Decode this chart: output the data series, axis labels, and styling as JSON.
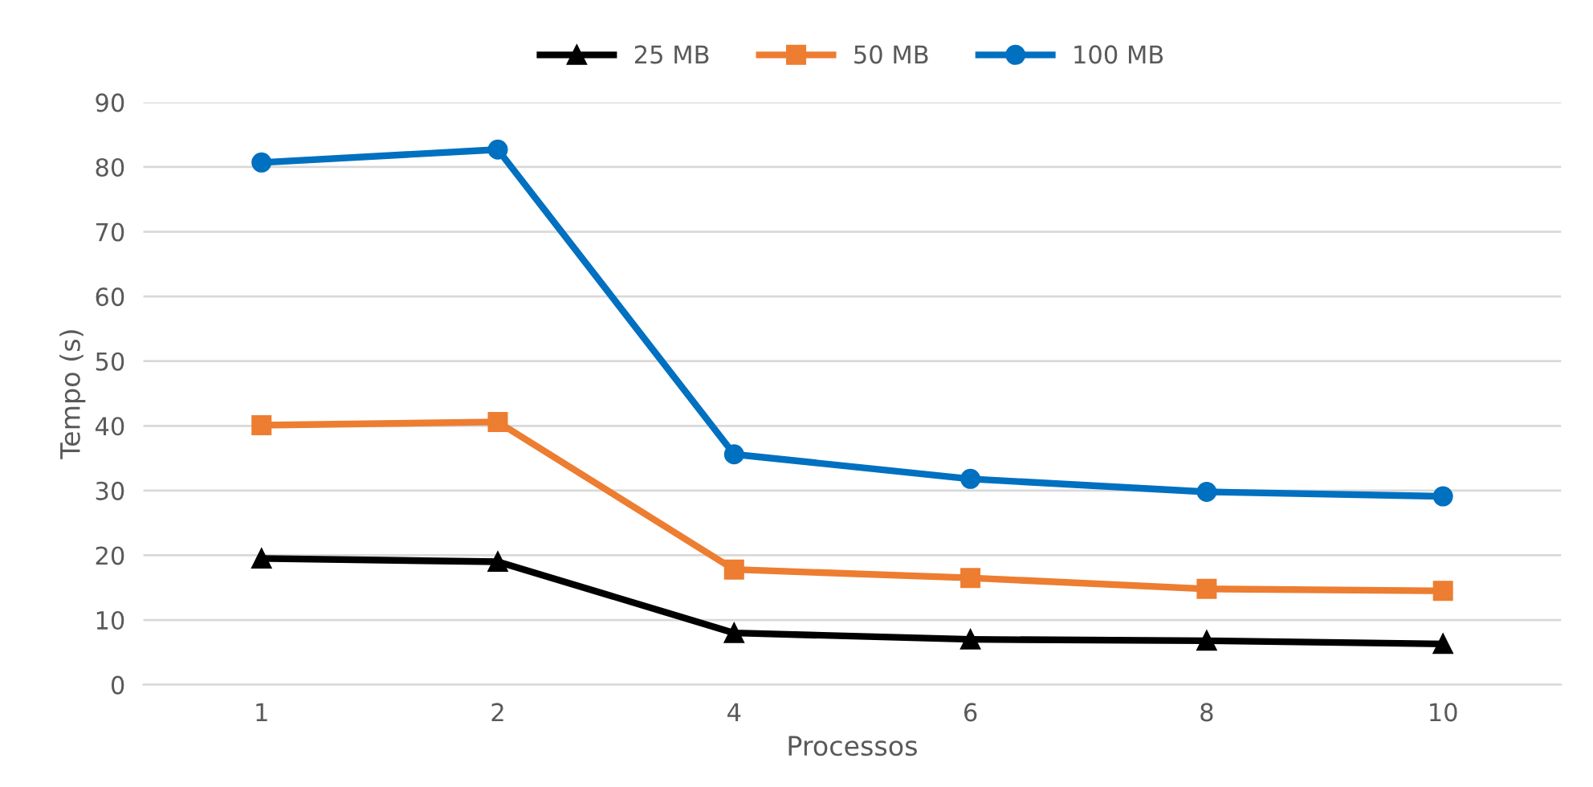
{
  "chart_data": {
    "type": "line",
    "xlabel": "Processos",
    "ylabel": "Tempo (s)",
    "categories": [
      "1",
      "2",
      "4",
      "6",
      "8",
      "10"
    ],
    "series": [
      {
        "name": "25 MB",
        "color": "#000000",
        "marker": "triangle",
        "values": [
          19.5,
          19.0,
          8.0,
          7.0,
          6.8,
          6.3
        ]
      },
      {
        "name": "50 MB",
        "color": "#ed7d31",
        "marker": "square",
        "values": [
          40.1,
          40.6,
          17.8,
          16.5,
          14.8,
          14.5
        ]
      },
      {
        "name": "100 MB",
        "color": "#0070c0",
        "marker": "circle",
        "values": [
          80.7,
          82.7,
          35.6,
          31.8,
          29.8,
          29.1
        ]
      }
    ],
    "ylim": [
      0,
      90
    ],
    "yticks": [
      0,
      10,
      20,
      30,
      40,
      50,
      60,
      70,
      80,
      90
    ],
    "grid": "y",
    "legend": "top"
  }
}
